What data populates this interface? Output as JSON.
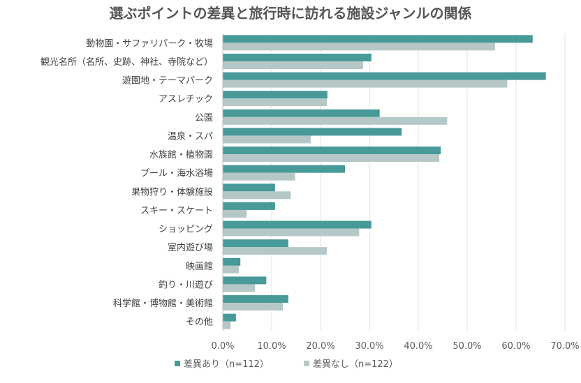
{
  "chart_data": {
    "type": "bar",
    "orientation": "horizontal",
    "title": "選ぶポイントの差異と旅行時に訪れる施設ジャンルの関係",
    "categories": [
      "動物園・サファリパーク・牧場",
      "観光名所（名所、史跡、神社、寺院など）",
      "遊園地・テーマパーク",
      "アスレチック",
      "公園",
      "温泉・スパ",
      "水族館・植物園",
      "プール・海水浴場",
      "果物狩り・体験施設",
      "スキー・スケート",
      "ショッピング",
      "室内遊び場",
      "映画館",
      "釣り・川遊び",
      "科学館・博物館・美術館",
      "その他"
    ],
    "series": [
      {
        "name": "差異あり（n=112）",
        "color": "#479a98",
        "values": [
          63.4,
          30.4,
          66.1,
          21.4,
          32.1,
          36.6,
          44.6,
          25.0,
          10.7,
          10.7,
          30.4,
          13.4,
          3.6,
          8.9,
          13.4,
          2.7
        ]
      },
      {
        "name": "差異なし（n=122）",
        "color": "#b5c7c6",
        "values": [
          55.7,
          28.7,
          58.2,
          21.3,
          45.9,
          18.0,
          44.3,
          14.8,
          13.9,
          4.9,
          27.9,
          21.3,
          3.3,
          6.6,
          12.3,
          1.6
        ]
      }
    ],
    "xlim": [
      0,
      70
    ],
    "xticks": [
      0,
      10,
      20,
      30,
      40,
      50,
      60,
      70
    ],
    "xtick_labels": [
      "0.0%",
      "10.0%",
      "20.0%",
      "30.0%",
      "40.0%",
      "50.0%",
      "60.0%",
      "70.0%"
    ],
    "grid": true,
    "legend_position": "bottom"
  }
}
